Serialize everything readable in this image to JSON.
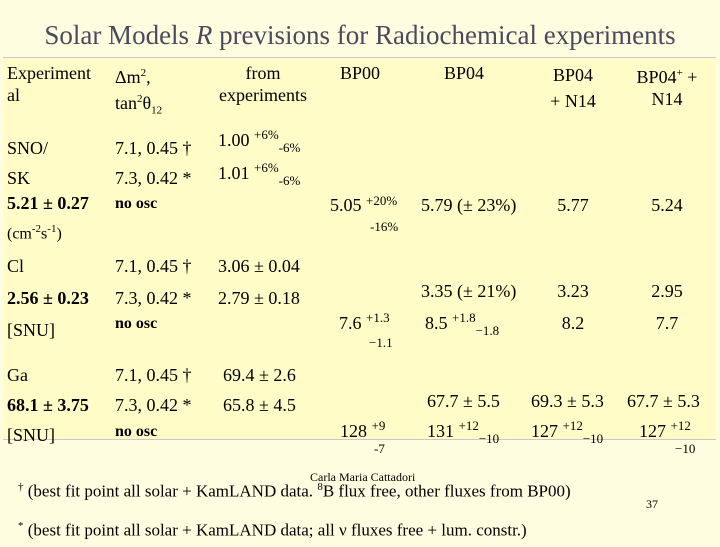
{
  "title_prefix": "Solar Models ",
  "title_r": "R",
  "title_suffix": " previsions for Radiochemical experiments",
  "headers": {
    "experiment": "Experiment",
    "experiment2": "al",
    "dm2": "Δm",
    "dm2_exp": "2",
    "dm2_comma": ",",
    "tan": "tan",
    "tan_exp": "2",
    "tan_theta": "θ",
    "tan_sub": "12",
    "from": "from",
    "experiments": "experiments",
    "bp00": "BP00",
    "bp04": "BP04",
    "bp04n14_1": "BP04",
    "bp04n14_2": "+ N14",
    "bp04p_1": "BP04",
    "bp04p_sup": "+",
    "bp04p_2": " +",
    "bp04p_3": "N14"
  },
  "sno": {
    "exp1": "SNO/",
    "exp2": "SK",
    "val": "5.21 ± 0.27",
    "unit_a": "(cm",
    "unit_e1": "-2",
    "unit_b": "s",
    "unit_e2": "-1",
    "unit_c": ")",
    "osc1": "7.1, 0.45 †",
    "osc2": "7.3, 0.42 *",
    "noosc": "no osc",
    "from1": "1.00",
    "from1_up": "+6%",
    "from1_dn": "-6%",
    "from2": "1.01",
    "from2_up": "+6%",
    "from2_dn": "-6%",
    "bp00": "5.05",
    "bp00_up": "+20%",
    "bp00_dn": "-16%",
    "bp04": "5.79 (± 23%)",
    "bp04n14": "5.77",
    "bp04p": "5.24"
  },
  "cl": {
    "exp1": "Cl",
    "val": "2.56 ± 0.23",
    "unit": "[SNU]",
    "osc1": "7.1, 0.45 †",
    "osc2": "7.3, 0.42 *",
    "noosc": "no osc",
    "from1": "3.06 ± 0.04",
    "from2": "2.79 ± 0.18",
    "bp04": "3.35 (± 21%)",
    "bp04n14": "3.23",
    "bp04p": "2.95",
    "noosc_bp00": "7.6",
    "noosc_bp00_up": "+1.3",
    "noosc_bp00_dn": "−1.1",
    "noosc_bp04": "8.5",
    "noosc_bp04_up": "+1.8",
    "noosc_bp04_dn": "−1.8",
    "noosc_bp04n14": "8.2",
    "noosc_bp04p": "7.7"
  },
  "ga": {
    "exp1": "Ga",
    "val": "68.1 ± 3.75",
    "unit": "[SNU]",
    "osc1": "7.1, 0.45 †",
    "osc2": "7.3, 0.42 *",
    "noosc": "no osc",
    "from1": "69.4 ± 2.6",
    "from2": "65.8 ± 4.5",
    "bp04": "67.7 ± 5.5",
    "bp04n14": "69.3 ± 5.3",
    "bp04p": "67.7 ± 5.3",
    "noosc_bp00": "128",
    "noosc_bp00_up": "+9",
    "noosc_bp00_dn": "-7",
    "noosc_bp04": "131",
    "noosc_bp04_up": "+12",
    "noosc_bp04_dn": "−10",
    "noosc_bp04n14": "127",
    "noosc_bp04n14_up": "+12",
    "noosc_bp04n14_dn": "−10",
    "noosc_bp04p": "127",
    "noosc_bp04p_up": "+12",
    "noosc_bp04p_dn": "−10"
  },
  "footnotes": {
    "f1_mark": "†",
    "f1_a": " (best fit point all solar + KamLAND data. ",
    "f1_sup": "8",
    "f1_b": "B flux free, other fluxes from BP00)",
    "f2_mark": "*",
    "f2": " (best fit point all solar + KamLAND data; all ν fluxes free +  lum. constr.)"
  },
  "author": "Carla Maria Cattadori",
  "page_number": "37"
}
